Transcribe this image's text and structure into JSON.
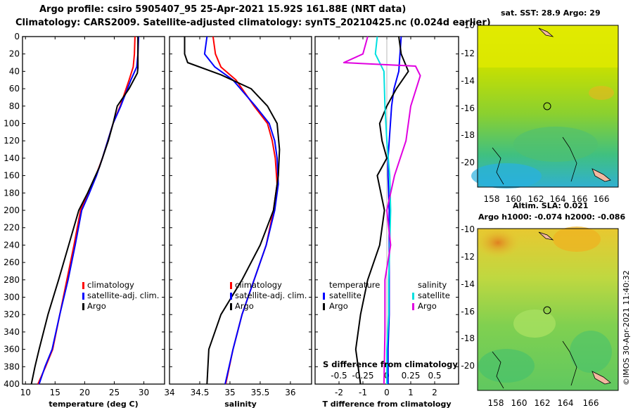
{
  "header": {
    "line1": "Argo profile: csiro 5905407_95 25-Apr-2021 15.92S 161.88E (NRT data)",
    "line2": "Climatology: CARS2009. Satellite-adjusted climatology: synTS_20210425.nc (0.024d earlier)"
  },
  "legends": {
    "temperature": [
      "climatology",
      "satellite-adj. clim.",
      "Argo"
    ],
    "salinity": [
      "climatology",
      "satellite-adj. clim.",
      "Argo"
    ],
    "diff_temperature": {
      "title": "temperature",
      "items": [
        "satellite",
        "Argo"
      ]
    },
    "diff_salinity": {
      "title": "salinity",
      "items": [
        "satellite",
        "Argo"
      ]
    },
    "diff_top_axis_label": "S difference from climatology"
  },
  "maps": {
    "sst_title": "sat. SST: 28.9 Argo: 29",
    "sla_title": "Altim. SLA: 0.021",
    "h_title": "Argo h1000: -0.074 h2000: -0.086",
    "xticks": [
      "158",
      "160",
      "162",
      "164",
      "166"
    ],
    "yticks": [
      "-10",
      "-12",
      "-14",
      "-16",
      "-18",
      "-20"
    ]
  },
  "watermark": "©IMOS 30-Apr-2021 11:40:32",
  "colors": {
    "climatology": "#ff0000",
    "satellite": "#0000ff",
    "argo": "#000000",
    "sal_satellite": "#00e0e0",
    "sal_argo": "#e000e0"
  },
  "chart_data": [
    {
      "type": "line",
      "title": "",
      "xlabel": "temperature (deg C)",
      "ylabel": "",
      "xlim": [
        9.5,
        33.5
      ],
      "ylim": [
        400,
        0
      ],
      "xticks": [
        10,
        15,
        20,
        25,
        30
      ],
      "yticks": [
        0,
        20,
        40,
        60,
        80,
        100,
        120,
        140,
        160,
        180,
        200,
        220,
        240,
        260,
        280,
        300,
        320,
        340,
        360,
        380,
        400
      ],
      "series": [
        {
          "name": "climatology",
          "color": "#ff0000",
          "x": [
            28.5,
            28.4,
            28.2,
            27.5,
            26.0,
            24.8,
            23.9,
            23.0,
            21.9,
            20.6,
            19.3,
            18.2,
            17.0,
            15.8,
            14.6,
            13.4,
            12.1
          ],
          "y": [
            0,
            20,
            35,
            50,
            80,
            100,
            120,
            140,
            160,
            180,
            200,
            240,
            280,
            320,
            360,
            380,
            400
          ]
        },
        {
          "name": "satellite-adj. clim.",
          "color": "#0000ff",
          "x": [
            29.1,
            29.0,
            28.8,
            27.8,
            26.1,
            24.8,
            23.9,
            23.0,
            22.0,
            20.8,
            19.5,
            18.4,
            17.2,
            15.8,
            14.5,
            13.3,
            12.3
          ],
          "y": [
            0,
            20,
            35,
            50,
            80,
            100,
            120,
            140,
            160,
            180,
            200,
            240,
            280,
            320,
            360,
            380,
            400
          ]
        },
        {
          "name": "Argo",
          "color": "#000000",
          "x": [
            29.0,
            29.0,
            29.0,
            28.9,
            27.5,
            25.5,
            24.8,
            24.0,
            22.5,
            20.5,
            19.0,
            17.3,
            15.6,
            13.8,
            12.3,
            11.6,
            11.0
          ],
          "y": [
            0,
            20,
            36,
            42,
            60,
            80,
            100,
            120,
            150,
            180,
            200,
            240,
            280,
            320,
            360,
            380,
            400
          ]
        }
      ]
    },
    {
      "type": "line",
      "title": "",
      "xlabel": "salinity",
      "ylabel": "",
      "xlim": [
        34.0,
        36.35
      ],
      "ylim": [
        400,
        0
      ],
      "xticks": [
        34,
        34.5,
        35,
        35.5,
        36
      ],
      "series": [
        {
          "name": "climatology",
          "color": "#ff0000",
          "x": [
            34.72,
            34.76,
            34.85,
            35.1,
            35.4,
            35.62,
            35.7,
            35.75,
            35.78,
            35.72,
            35.6,
            35.4,
            35.2,
            35.05,
            34.93
          ],
          "y": [
            0,
            20,
            35,
            50,
            80,
            100,
            120,
            140,
            170,
            200,
            240,
            280,
            320,
            360,
            400
          ]
        },
        {
          "name": "satellite-adj. clim.",
          "color": "#0000ff",
          "x": [
            34.62,
            34.58,
            34.75,
            35.05,
            35.42,
            35.65,
            35.74,
            35.78,
            35.8,
            35.74,
            35.6,
            35.4,
            35.2,
            35.05,
            34.92
          ],
          "y": [
            0,
            20,
            35,
            50,
            80,
            100,
            120,
            140,
            170,
            200,
            240,
            280,
            320,
            360,
            400
          ]
        },
        {
          "name": "Argo",
          "color": "#000000",
          "x": [
            34.25,
            34.25,
            34.3,
            34.85,
            35.35,
            35.62,
            35.78,
            35.82,
            35.8,
            35.72,
            35.5,
            35.2,
            34.85,
            34.65,
            34.62
          ],
          "y": [
            0,
            20,
            30,
            44,
            60,
            80,
            100,
            130,
            160,
            200,
            240,
            280,
            320,
            360,
            400
          ]
        }
      ]
    },
    {
      "type": "line",
      "title": "",
      "xlabel": "T difference from climatology",
      "x2label": "S difference from climatology",
      "ylabel": "",
      "xlim": [
        -3.0,
        3.0
      ],
      "x2lim": [
        -0.75,
        0.75
      ],
      "ylim": [
        400,
        0
      ],
      "xticks": [
        -2,
        -1,
        0,
        1,
        2
      ],
      "x2ticks": [
        -0.5,
        -0.25,
        0,
        0.25,
        0.5
      ],
      "x2ticklabels": [
        "-0.5",
        "-0.25",
        "0",
        "0.25",
        "0.5"
      ],
      "series": [
        {
          "name": "temperature satellite",
          "axis": "T",
          "color": "#0000ff",
          "x": [
            0.6,
            0.55,
            0.5,
            0.3,
            0.2,
            0.15,
            0.1,
            0.05,
            0.05,
            0.1,
            0.1,
            0.1,
            0.1,
            0.05,
            0.05
          ],
          "y": [
            0,
            20,
            40,
            60,
            80,
            100,
            120,
            140,
            160,
            200,
            240,
            280,
            320,
            360,
            400
          ]
        },
        {
          "name": "temperature Argo",
          "axis": "T",
          "color": "#000000",
          "x": [
            0.5,
            0.6,
            0.9,
            0.4,
            0.0,
            -0.3,
            -0.2,
            0.0,
            -0.4,
            -0.1,
            -0.3,
            -0.8,
            -1.1,
            -1.3,
            -1.1
          ],
          "y": [
            0,
            20,
            40,
            60,
            80,
            100,
            120,
            140,
            160,
            200,
            240,
            280,
            320,
            360,
            400
          ]
        },
        {
          "name": "salinity satellite",
          "axis": "S",
          "color": "#00e0e0",
          "x": [
            -0.1,
            -0.12,
            -0.03,
            -0.02,
            0.0,
            0.03,
            0.04,
            0.03,
            0.02,
            0.02,
            0.0,
            0.0,
            0.0
          ],
          "y": [
            0,
            20,
            40,
            80,
            120,
            160,
            200,
            240,
            280,
            320,
            360,
            380,
            400
          ]
        },
        {
          "name": "salinity Argo",
          "axis": "S",
          "color": "#e000e0",
          "x": [
            -0.2,
            -0.25,
            -0.45,
            0.3,
            0.35,
            0.25,
            0.2,
            0.08,
            0.0,
            0.04,
            -0.02,
            -0.02,
            -0.03
          ],
          "y": [
            0,
            20,
            30,
            34,
            45,
            80,
            120,
            160,
            200,
            240,
            280,
            340,
            400
          ]
        }
      ]
    }
  ]
}
